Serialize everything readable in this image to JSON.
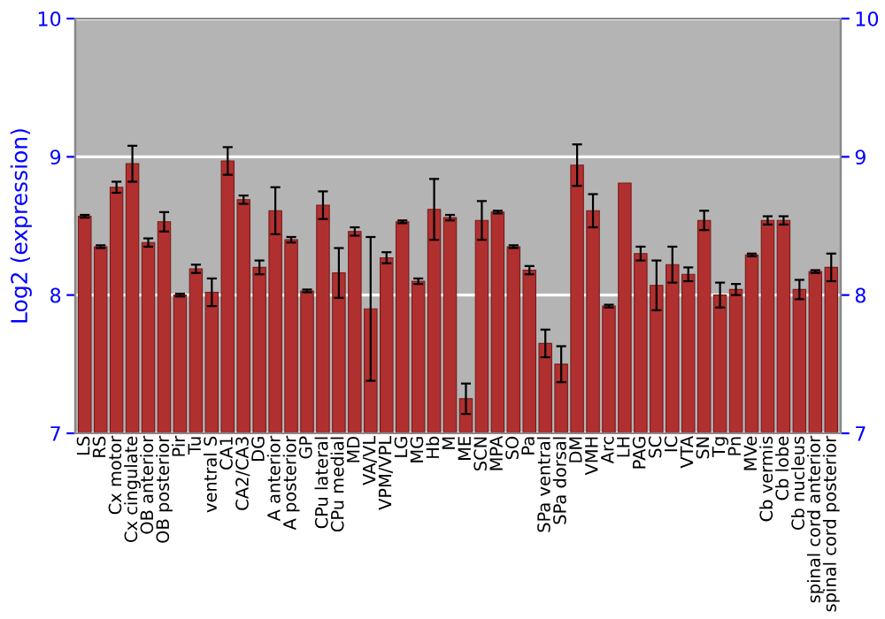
{
  "chart_data": {
    "type": "bar",
    "ylabel": "Log2 (expression)",
    "categories": [
      "LS",
      "RS",
      "Cx motor",
      "Cx cingulate",
      "OB anterior",
      "OB posterior",
      "Pir",
      "Tu",
      "ventral S",
      "CA1",
      "CA2/CA3",
      "DG",
      "A anterior",
      "A posterior",
      "GP",
      "CPu lateral",
      "CPu medial",
      "MD",
      "VA/VL",
      "VPM/VPL",
      "LG",
      "MG",
      "Hb",
      "M",
      "ME",
      "SCN",
      "MPA",
      "SO",
      "Pa",
      "SPa ventral",
      "SPa dorsal",
      "DM",
      "VMH",
      "Arc",
      "LH",
      "PAG",
      "SC",
      "IC",
      "VTA",
      "SN",
      "Tg",
      "Pn",
      "MVe",
      "Cb vermis",
      "Cb lobe",
      "Cb nucleus",
      "spinal cord anterior",
      "spinal cord posterior"
    ],
    "values": [
      8.57,
      8.35,
      8.78,
      8.95,
      8.38,
      8.53,
      8.0,
      8.19,
      8.02,
      8.97,
      8.69,
      8.2,
      8.61,
      8.4,
      8.03,
      8.65,
      8.16,
      8.46,
      7.9,
      8.27,
      8.53,
      8.1,
      8.62,
      8.56,
      7.25,
      8.54,
      8.6,
      8.35,
      8.18,
      7.65,
      7.5,
      8.94,
      8.61,
      7.92,
      8.81,
      8.3,
      8.07,
      8.22,
      8.15,
      8.54,
      8.0,
      8.04,
      8.29,
      8.54,
      8.54,
      8.04,
      8.17,
      8.2
    ],
    "errors": [
      0.01,
      0.01,
      0.04,
      0.13,
      0.03,
      0.07,
      0.01,
      0.03,
      0.1,
      0.1,
      0.03,
      0.05,
      0.17,
      0.02,
      0.01,
      0.1,
      0.18,
      0.03,
      0.52,
      0.04,
      0.01,
      0.02,
      0.22,
      0.02,
      0.11,
      0.14,
      0.01,
      0.01,
      0.03,
      0.1,
      0.13,
      0.15,
      0.12,
      0.01,
      null,
      0.05,
      0.18,
      0.13,
      0.05,
      0.07,
      0.09,
      0.04,
      0.01,
      0.03,
      0.03,
      0.07,
      0.01,
      0.1
    ],
    "color": "#b03030",
    "ylim": [
      7,
      10
    ],
    "yticks": [
      7,
      8,
      9,
      10
    ],
    "y2lim": [
      7,
      10
    ],
    "y2ticks": [
      7,
      8,
      9,
      10
    ],
    "grid": "y"
  }
}
